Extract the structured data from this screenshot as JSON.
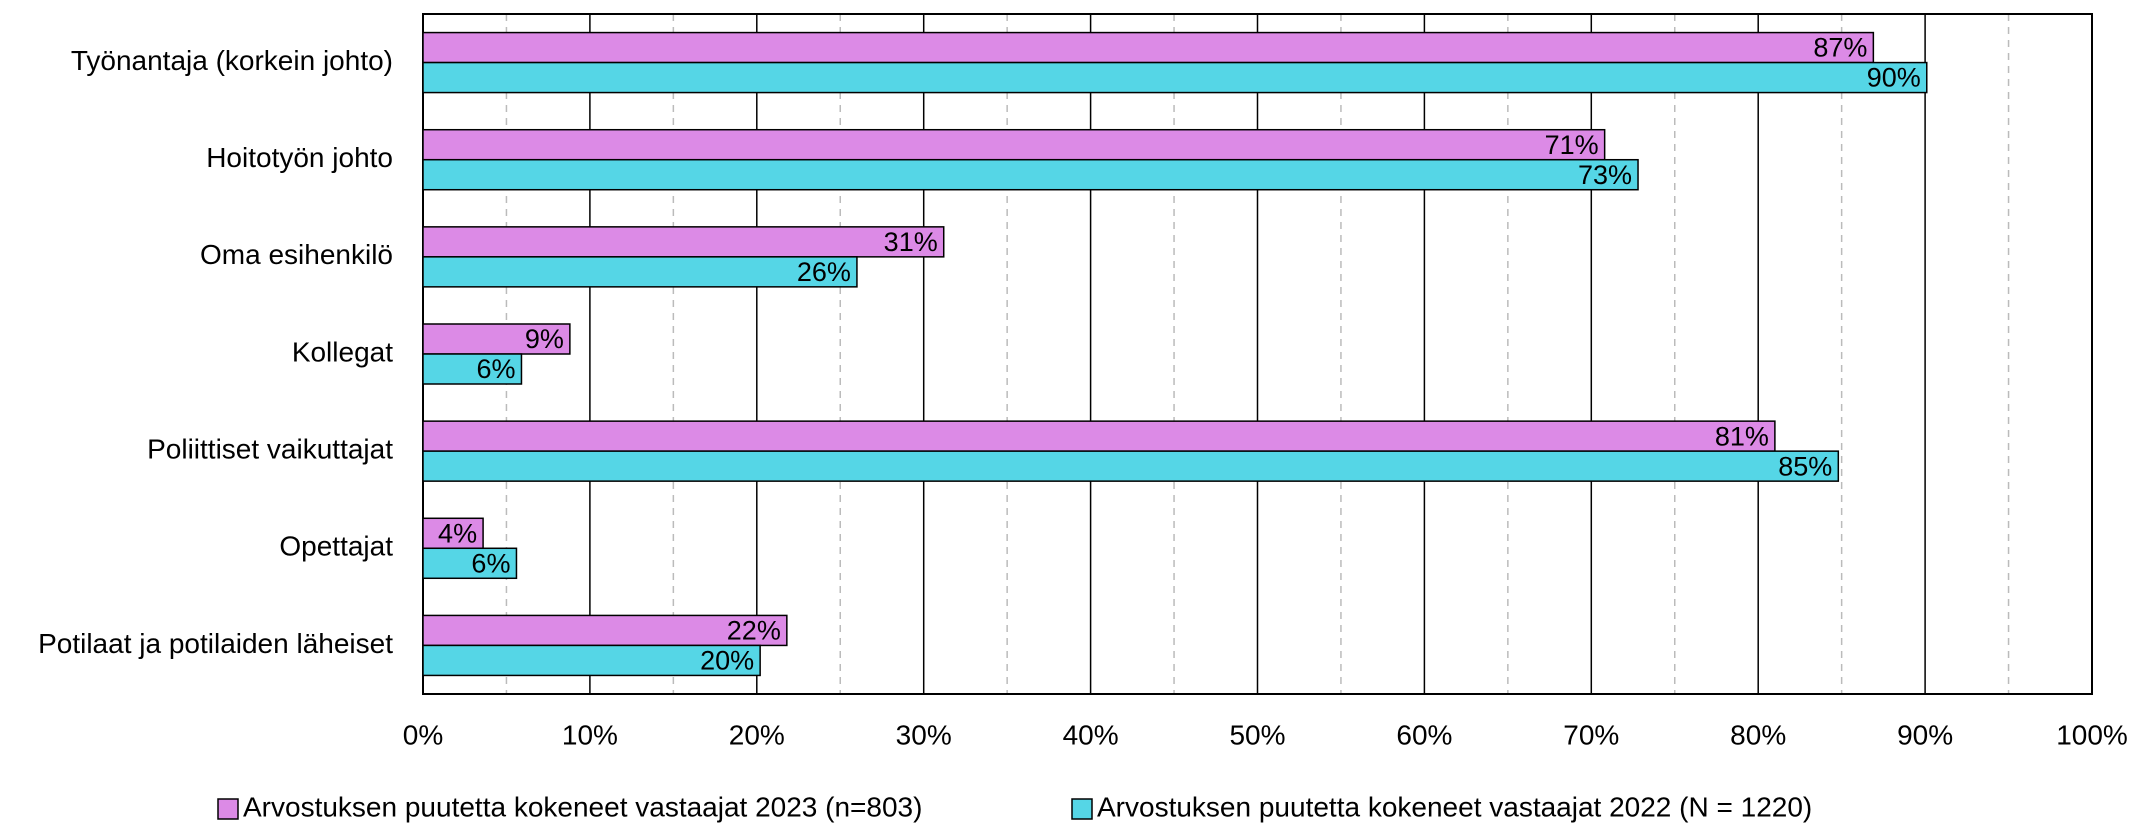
{
  "chart_data": {
    "type": "bar",
    "orientation": "horizontal",
    "categories": [
      "Työnantaja (korkein johto)",
      "Hoitotyön johto",
      "Oma esihenkilö",
      "Kollegat",
      "Poliittiset vaikuttajat",
      "Opettajat",
      "Potilaat ja potilaiden läheiset"
    ],
    "series": [
      {
        "name": "Arvostuksen puutetta kokeneet vastaajat 2023 (n=803)",
        "color": "#dc8ae6",
        "values": [
          86.9,
          70.8,
          31.2,
          8.8,
          81.0,
          3.6,
          21.8
        ],
        "value_labels": [
          "87%",
          "71%",
          "31%",
          "9%",
          "81%",
          "4%",
          "22%"
        ]
      },
      {
        "name": "Arvostuksen puutetta kokeneet vastaajat 2022 (N = 1220)",
        "color": "#55d6e6",
        "values": [
          90.1,
          72.8,
          26.0,
          5.9,
          84.8,
          5.6,
          20.2
        ],
        "value_labels": [
          "90%",
          "73%",
          "26%",
          "6%",
          "85%",
          "6%",
          "20%"
        ]
      }
    ],
    "xlim": [
      0,
      100
    ],
    "xticks": [
      {
        "value": 0,
        "label": "0%"
      },
      {
        "value": 10,
        "label": "10%"
      },
      {
        "value": 20,
        "label": "20%"
      },
      {
        "value": 30,
        "label": "30%"
      },
      {
        "value": 40,
        "label": "40%"
      },
      {
        "value": 50,
        "label": "50%"
      },
      {
        "value": 60,
        "label": "60%"
      },
      {
        "value": 70,
        "label": "70%"
      },
      {
        "value": 80,
        "label": "80%"
      },
      {
        "value": 90,
        "label": "90%"
      },
      {
        "value": 100,
        "label": "100%"
      }
    ],
    "grid": true,
    "legend": "bottom"
  }
}
